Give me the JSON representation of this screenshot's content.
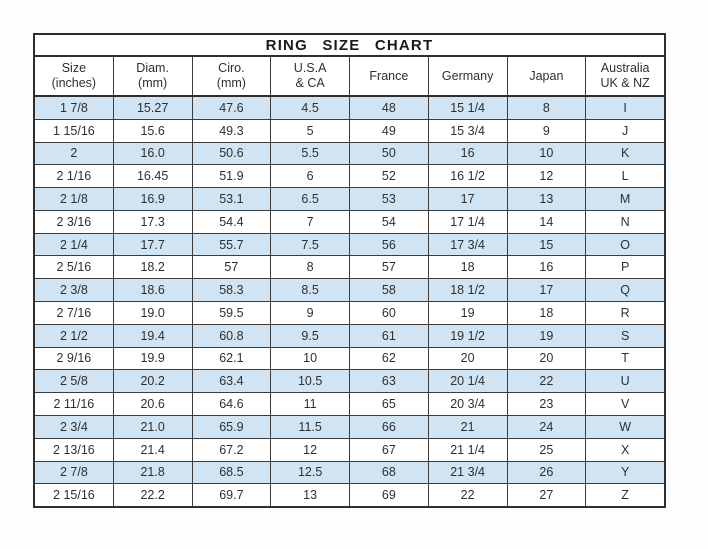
{
  "colors": {
    "page_bg": "#fdfdfd",
    "border": "#2e2e2e",
    "grid": "#3c3c3c",
    "row_alt": "#d0e4f4",
    "title_text": "#1a1a1a",
    "cell_text": "#2f2f2f"
  },
  "chart_data": {
    "type": "table",
    "title": "RING SIZE CHART",
    "columns": [
      [
        "Size",
        "(inches)"
      ],
      [
        "Diam.",
        "(mm)"
      ],
      [
        "Ciro.",
        "(mm)"
      ],
      [
        "U.S.A",
        "& CA"
      ],
      [
        "France",
        ""
      ],
      [
        "Germany",
        ""
      ],
      [
        "Japan",
        ""
      ],
      [
        "Australia",
        "UK & NZ"
      ]
    ],
    "rows": [
      [
        "1 7/8",
        "15.27",
        "47.6",
        "4.5",
        "48",
        "15 1/4",
        "8",
        "I"
      ],
      [
        "1 15/16",
        "15.6",
        "49.3",
        "5",
        "49",
        "15 3/4",
        "9",
        "J"
      ],
      [
        "2",
        "16.0",
        "50.6",
        "5.5",
        "50",
        "16",
        "10",
        "K"
      ],
      [
        "2 1/16",
        "16.45",
        "51.9",
        "6",
        "52",
        "16 1/2",
        "12",
        "L"
      ],
      [
        "2 1/8",
        "16.9",
        "53.1",
        "6.5",
        "53",
        "17",
        "13",
        "M"
      ],
      [
        "2 3/16",
        "17.3",
        "54.4",
        "7",
        "54",
        "17 1/4",
        "14",
        "N"
      ],
      [
        "2 1/4",
        "17.7",
        "55.7",
        "7.5",
        "56",
        "17 3/4",
        "15",
        "O"
      ],
      [
        "2 5/16",
        "18.2",
        "57",
        "8",
        "57",
        "18",
        "16",
        "P"
      ],
      [
        "2 3/8",
        "18.6",
        "58.3",
        "8.5",
        "58",
        "18 1/2",
        "17",
        "Q"
      ],
      [
        "2 7/16",
        "19.0",
        "59.5",
        "9",
        "60",
        "19",
        "18",
        "R"
      ],
      [
        "2 1/2",
        "19.4",
        "60.8",
        "9.5",
        "61",
        "19 1/2",
        "19",
        "S"
      ],
      [
        "2 9/16",
        "19.9",
        "62.1",
        "10",
        "62",
        "20",
        "20",
        "T"
      ],
      [
        "2 5/8",
        "20.2",
        "63.4",
        "10.5",
        "63",
        "20 1/4",
        "22",
        "U"
      ],
      [
        "2 11/16",
        "20.6",
        "64.6",
        "11",
        "65",
        "20 3/4",
        "23",
        "V"
      ],
      [
        "2 3/4",
        "21.0",
        "65.9",
        "11.5",
        "66",
        "21",
        "24",
        "W"
      ],
      [
        "2 13/16",
        "21.4",
        "67.2",
        "12",
        "67",
        "21 1/4",
        "25",
        "X"
      ],
      [
        "2 7/8",
        "21.8",
        "68.5",
        "12.5",
        "68",
        "21 3/4",
        "26",
        "Y"
      ],
      [
        "2 15/16",
        "22.2",
        "69.7",
        "13",
        "69",
        "22",
        "27",
        "Z"
      ]
    ]
  }
}
